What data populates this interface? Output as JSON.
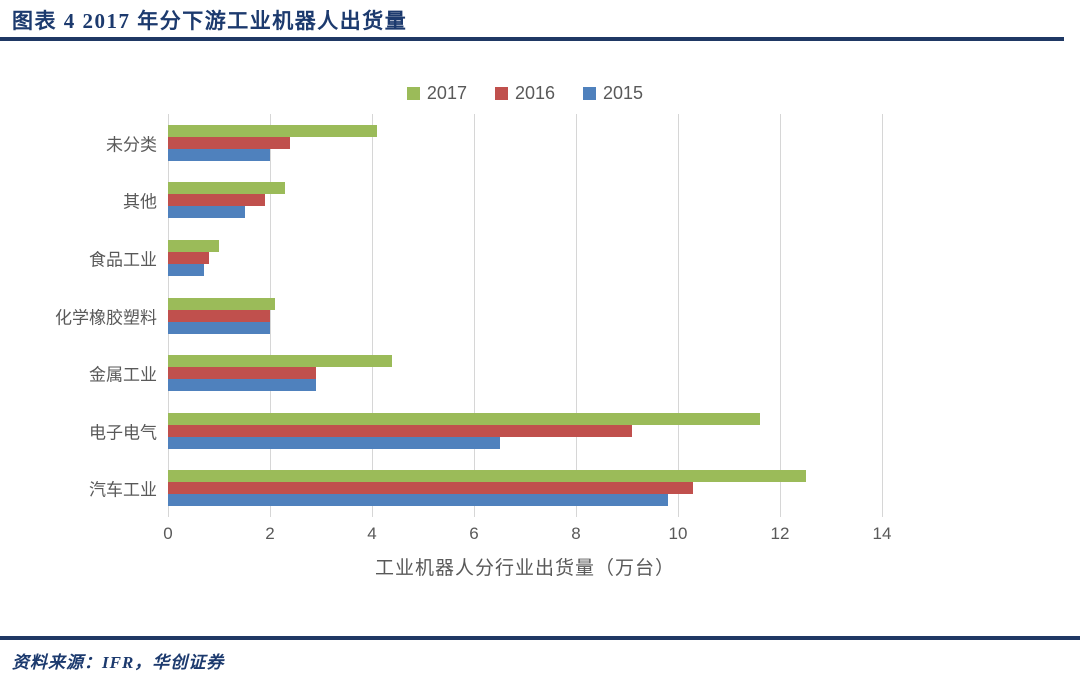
{
  "figure": {
    "title": "图表 4  2017 年分下游工业机器人出货量",
    "source": "资料来源：IFR，华创证券",
    "accent_color": "#1f3864",
    "text_color": "#595959"
  },
  "chart_data": {
    "type": "bar",
    "orientation": "horizontal",
    "title": "2017 年分下游工业机器人出货量",
    "categories": [
      "未分类",
      "其他",
      "食品工业",
      "化学橡胶塑料",
      "金属工业",
      "电子电气",
      "汽车工业"
    ],
    "series": [
      {
        "name": "2017",
        "color": "#9bbb59",
        "values": [
          4.1,
          2.3,
          1.0,
          2.1,
          4.4,
          11.6,
          12.5
        ]
      },
      {
        "name": "2016",
        "color": "#c0504d",
        "values": [
          2.4,
          1.9,
          0.8,
          2.0,
          2.9,
          9.1,
          10.3
        ]
      },
      {
        "name": "2015",
        "color": "#4f81bd",
        "values": [
          2.0,
          1.5,
          0.7,
          2.0,
          2.9,
          6.5,
          9.8
        ]
      }
    ],
    "xlabel": "工业机器人分行业出货量（万台）",
    "ylabel": "",
    "xlim": [
      0,
      14
    ],
    "xticks": [
      0,
      2,
      4,
      6,
      8,
      10,
      12,
      14
    ],
    "grid": true,
    "gridline_color": "#d6d6d6",
    "legend_position": "top",
    "legend_entries": [
      "2017",
      "2016",
      "2015"
    ],
    "unit": "万台"
  }
}
